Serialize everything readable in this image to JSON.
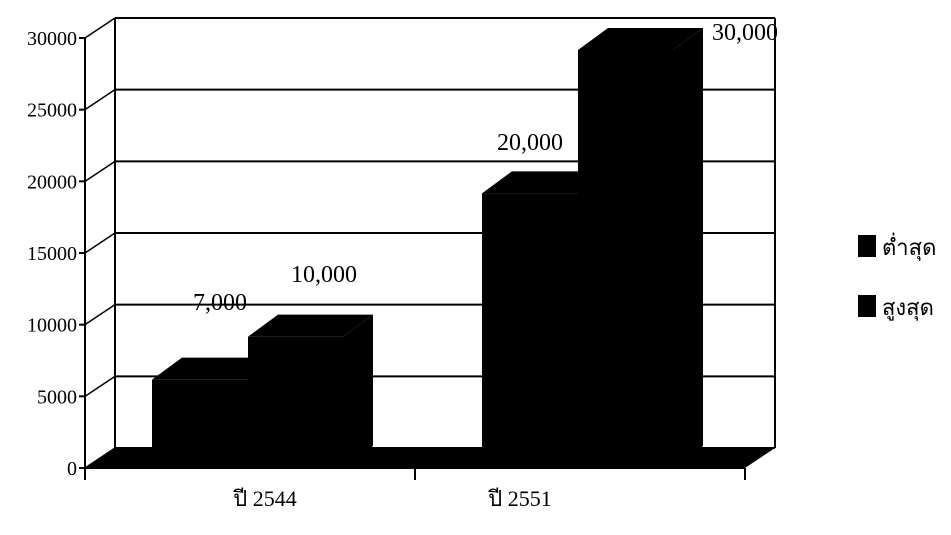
{
  "chart_data": {
    "type": "bar",
    "style": "3d-clustered",
    "categories": [
      "ปี 2544",
      "ปี 2551"
    ],
    "series": [
      {
        "name": "ต่ำสุด",
        "values": [
          7000,
          20000
        ],
        "color": "#000000"
      },
      {
        "name": "สูงสุด",
        "values": [
          10000,
          30000
        ],
        "color": "#000000"
      }
    ],
    "data_labels": [
      "7,000",
      "10,000",
      "20,000",
      "30,000"
    ],
    "ylim": [
      0,
      30000
    ],
    "yticks": [
      "0",
      "5000",
      "10000",
      "15000",
      "20000",
      "25000",
      "30000"
    ],
    "grid": true,
    "legend": "right",
    "title": "",
    "xlabel": "",
    "ylabel": ""
  }
}
